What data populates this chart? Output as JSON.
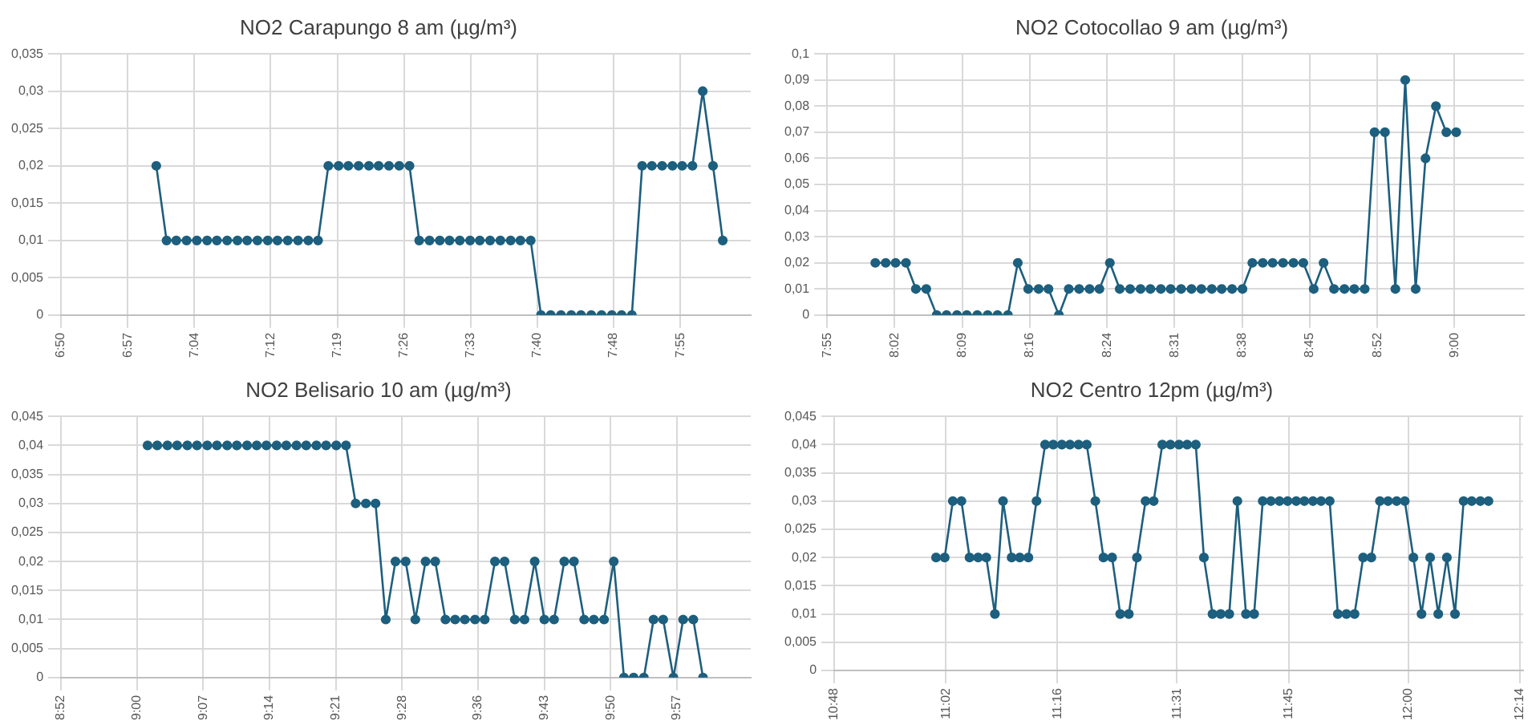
{
  "chart_data": [
    {
      "type": "line",
      "title": "NO2 Carapungo 8 am (µg/m³)",
      "marker": "circle",
      "grid": true,
      "xlim": [
        6.8333,
        8.04
      ],
      "xticks": [
        {
          "value": 6.8333,
          "label": "6:50"
        },
        {
          "value": 6.95,
          "label": "6:57"
        },
        {
          "value": 7.0667,
          "label": "7:04"
        },
        {
          "value": 7.2,
          "label": "7:12"
        },
        {
          "value": 7.3167,
          "label": "7:19"
        },
        {
          "value": 7.4333,
          "label": "7:26"
        },
        {
          "value": 7.55,
          "label": "7:33"
        },
        {
          "value": 7.6667,
          "label": "7:40"
        },
        {
          "value": 7.8,
          "label": "7:48"
        },
        {
          "value": 7.9167,
          "label": "7:55"
        }
      ],
      "ylim": [
        0,
        0.035
      ],
      "yticks": [
        {
          "value": 0,
          "label": "0"
        },
        {
          "value": 0.005,
          "label": "0,005"
        },
        {
          "value": 0.01,
          "label": "0,01"
        },
        {
          "value": 0.015,
          "label": "0,015"
        },
        {
          "value": 0.02,
          "label": "0,02"
        },
        {
          "value": 0.025,
          "label": "0,025"
        },
        {
          "value": 0.03,
          "label": "0,03"
        },
        {
          "value": 0.035,
          "label": "0,035"
        }
      ],
      "series": [
        {
          "color": "#1d5f7e",
          "x": [
            7.0,
            7.018,
            7.035,
            7.053,
            7.071,
            7.089,
            7.106,
            7.124,
            7.142,
            7.159,
            7.177,
            7.195,
            7.212,
            7.23,
            7.248,
            7.266,
            7.283,
            7.301,
            7.319,
            7.336,
            7.354,
            7.372,
            7.389,
            7.407,
            7.425,
            7.443,
            7.46,
            7.478,
            7.496,
            7.513,
            7.531,
            7.549,
            7.566,
            7.584,
            7.602,
            7.62,
            7.637,
            7.655,
            7.673,
            7.69,
            7.708,
            7.726,
            7.743,
            7.761,
            7.779,
            7.797,
            7.814,
            7.832,
            7.85,
            7.867,
            7.885,
            7.903,
            7.92,
            7.938,
            7.956,
            7.974,
            7.991
          ],
          "values": [
            0.02,
            0.01,
            0.01,
            0.01,
            0.01,
            0.01,
            0.01,
            0.01,
            0.01,
            0.01,
            0.01,
            0.01,
            0.01,
            0.01,
            0.01,
            0.01,
            0.01,
            0.02,
            0.02,
            0.02,
            0.02,
            0.02,
            0.02,
            0.02,
            0.02,
            0.02,
            0.01,
            0.01,
            0.01,
            0.01,
            0.01,
            0.01,
            0.01,
            0.01,
            0.01,
            0.01,
            0.01,
            0.01,
            0,
            0,
            0,
            0,
            0,
            0,
            0,
            0,
            0,
            0,
            0.02,
            0.02,
            0.02,
            0.02,
            0.02,
            0.02,
            0.03,
            0.02,
            0.01
          ]
        }
      ]
    },
    {
      "type": "line",
      "title": "NO2 Cotocollao 9 am (µg/m³)",
      "marker": "circle",
      "grid": true,
      "xlim": [
        7.9167,
        9.12
      ],
      "xticks": [
        {
          "value": 7.9167,
          "label": "7:55"
        },
        {
          "value": 8.0333,
          "label": "8:02"
        },
        {
          "value": 8.15,
          "label": "8:09"
        },
        {
          "value": 8.2667,
          "label": "8:16"
        },
        {
          "value": 8.4,
          "label": "8:24"
        },
        {
          "value": 8.5167,
          "label": "8:31"
        },
        {
          "value": 8.6333,
          "label": "8:38"
        },
        {
          "value": 8.75,
          "label": "8:45"
        },
        {
          "value": 8.8667,
          "label": "8:52"
        },
        {
          "value": 9.0,
          "label": "9:00"
        }
      ],
      "ylim": [
        0,
        0.1
      ],
      "yticks": [
        {
          "value": 0,
          "label": "0"
        },
        {
          "value": 0.01,
          "label": "0,01"
        },
        {
          "value": 0.02,
          "label": "0,02"
        },
        {
          "value": 0.03,
          "label": "0,03"
        },
        {
          "value": 0.04,
          "label": "0,04"
        },
        {
          "value": 0.05,
          "label": "0,05"
        },
        {
          "value": 0.06,
          "label": "0,06"
        },
        {
          "value": 0.07,
          "label": "0,07"
        },
        {
          "value": 0.08,
          "label": "0,08"
        },
        {
          "value": 0.09,
          "label": "0,09"
        },
        {
          "value": 0.1,
          "label": "0,1"
        }
      ],
      "series": [
        {
          "color": "#1d5f7e",
          "x": [
            8.0,
            8.018,
            8.035,
            8.053,
            8.07,
            8.088,
            8.106,
            8.123,
            8.141,
            8.158,
            8.176,
            8.194,
            8.211,
            8.229,
            8.246,
            8.264,
            8.282,
            8.299,
            8.317,
            8.334,
            8.352,
            8.37,
            8.387,
            8.405,
            8.422,
            8.44,
            8.458,
            8.475,
            8.493,
            8.51,
            8.528,
            8.546,
            8.563,
            8.581,
            8.598,
            8.616,
            8.634,
            8.651,
            8.669,
            8.686,
            8.704,
            8.722,
            8.739,
            8.757,
            8.774,
            8.792,
            8.81,
            8.827,
            8.845,
            8.862,
            8.88,
            8.898,
            8.915,
            8.933,
            8.95,
            8.968,
            8.986,
            9.003
          ],
          "values": [
            0.02,
            0.02,
            0.02,
            0.02,
            0.01,
            0.01,
            0,
            0,
            0,
            0,
            0,
            0,
            0,
            0,
            0.02,
            0.01,
            0.01,
            0.01,
            0,
            0.01,
            0.01,
            0.01,
            0.01,
            0.02,
            0.01,
            0.01,
            0.01,
            0.01,
            0.01,
            0.01,
            0.01,
            0.01,
            0.01,
            0.01,
            0.01,
            0.01,
            0.01,
            0.02,
            0.02,
            0.02,
            0.02,
            0.02,
            0.02,
            0.01,
            0.02,
            0.01,
            0.01,
            0.01,
            0.01,
            0.07,
            0.07,
            0.01,
            0.09,
            0.01,
            0.06,
            0.08,
            0.07,
            0.07
          ]
        }
      ]
    },
    {
      "type": "line",
      "title": "NO2 Belisario 10 am (µg/m³)",
      "marker": "circle",
      "grid": true,
      "xlim": [
        8.8667,
        10.08
      ],
      "xticks": [
        {
          "value": 8.8667,
          "label": "8:52"
        },
        {
          "value": 9.0,
          "label": "9:00"
        },
        {
          "value": 9.1167,
          "label": "9:07"
        },
        {
          "value": 9.2333,
          "label": "9:14"
        },
        {
          "value": 9.35,
          "label": "9:21"
        },
        {
          "value": 9.4667,
          "label": "9:28"
        },
        {
          "value": 9.6,
          "label": "9:36"
        },
        {
          "value": 9.7167,
          "label": "9:43"
        },
        {
          "value": 9.8333,
          "label": "9:50"
        },
        {
          "value": 9.95,
          "label": "9:57"
        }
      ],
      "ylim": [
        0,
        0.045
      ],
      "yticks": [
        {
          "value": 0,
          "label": "0"
        },
        {
          "value": 0.005,
          "label": "0,005"
        },
        {
          "value": 0.01,
          "label": "0,01"
        },
        {
          "value": 0.015,
          "label": "0,015"
        },
        {
          "value": 0.02,
          "label": "0,02"
        },
        {
          "value": 0.025,
          "label": "0,025"
        },
        {
          "value": 0.03,
          "label": "0,03"
        },
        {
          "value": 0.035,
          "label": "0,035"
        },
        {
          "value": 0.04,
          "label": "0,04"
        },
        {
          "value": 0.045,
          "label": "0,045"
        }
      ],
      "series": [
        {
          "color": "#1d5f7e",
          "x": [
            9.019,
            9.036,
            9.054,
            9.071,
            9.089,
            9.106,
            9.124,
            9.141,
            9.159,
            9.176,
            9.194,
            9.211,
            9.228,
            9.246,
            9.263,
            9.281,
            9.298,
            9.316,
            9.333,
            9.351,
            9.368,
            9.385,
            9.403,
            9.42,
            9.438,
            9.455,
            9.473,
            9.49,
            9.508,
            9.525,
            9.543,
            9.56,
            9.577,
            9.595,
            9.612,
            9.63,
            9.647,
            9.665,
            9.682,
            9.7,
            9.717,
            9.734,
            9.752,
            9.769,
            9.787,
            9.804,
            9.822,
            9.839,
            9.857,
            9.874,
            9.892,
            9.909,
            9.926,
            9.944,
            9.961,
            9.979,
            9.996
          ],
          "values": [
            0.04,
            0.04,
            0.04,
            0.04,
            0.04,
            0.04,
            0.04,
            0.04,
            0.04,
            0.04,
            0.04,
            0.04,
            0.04,
            0.04,
            0.04,
            0.04,
            0.04,
            0.04,
            0.04,
            0.04,
            0.04,
            0.03,
            0.03,
            0.03,
            0.01,
            0.02,
            0.02,
            0.01,
            0.02,
            0.02,
            0.01,
            0.01,
            0.01,
            0.01,
            0.01,
            0.02,
            0.02,
            0.01,
            0.01,
            0.02,
            0.01,
            0.01,
            0.02,
            0.02,
            0.01,
            0.01,
            0.01,
            0.02,
            0,
            0,
            0,
            0.01,
            0.01,
            0,
            0.01,
            0.01,
            0
          ]
        }
      ]
    },
    {
      "type": "line",
      "title": "NO2 Centro 12pm (µg/m³)",
      "marker": "circle",
      "grid": true,
      "xlim": [
        10.8,
        12.24
      ],
      "xticks": [
        {
          "value": 10.8,
          "label": "10:48"
        },
        {
          "value": 11.0333,
          "label": "11:02"
        },
        {
          "value": 11.2667,
          "label": "11:16"
        },
        {
          "value": 11.5167,
          "label": "11:31"
        },
        {
          "value": 11.75,
          "label": "11:45"
        },
        {
          "value": 12.0,
          "label": "12:00"
        },
        {
          "value": 12.2333,
          "label": "12:14"
        }
      ],
      "ylim": [
        0,
        0.045
      ],
      "yticks": [
        {
          "value": 0,
          "label": "0"
        },
        {
          "value": 0.005,
          "label": "0,005"
        },
        {
          "value": 0.01,
          "label": "0,01"
        },
        {
          "value": 0.015,
          "label": "0,015"
        },
        {
          "value": 0.02,
          "label": "0,02"
        },
        {
          "value": 0.025,
          "label": "0,025"
        },
        {
          "value": 0.03,
          "label": "0,03"
        },
        {
          "value": 0.035,
          "label": "0,035"
        },
        {
          "value": 0.04,
          "label": "0,04"
        },
        {
          "value": 0.045,
          "label": "0,045"
        }
      ],
      "series": [
        {
          "color": "#1d5f7e",
          "x": [
            11.013,
            11.031,
            11.048,
            11.066,
            11.083,
            11.101,
            11.118,
            11.136,
            11.153,
            11.171,
            11.188,
            11.206,
            11.223,
            11.241,
            11.258,
            11.276,
            11.293,
            11.311,
            11.328,
            11.346,
            11.363,
            11.381,
            11.398,
            11.416,
            11.433,
            11.451,
            11.468,
            11.486,
            11.503,
            11.521,
            11.538,
            11.556,
            11.573,
            11.591,
            11.608,
            11.626,
            11.643,
            11.661,
            11.678,
            11.696,
            11.713,
            11.731,
            11.748,
            11.766,
            11.783,
            11.801,
            11.818,
            11.836,
            11.853,
            11.871,
            11.888,
            11.906,
            11.923,
            11.941,
            11.958,
            11.976,
            11.993,
            12.011,
            12.028,
            12.046,
            12.063,
            12.081,
            12.098,
            12.116,
            12.133,
            12.151,
            12.168
          ],
          "values": [
            0.02,
            0.02,
            0.03,
            0.03,
            0.02,
            0.02,
            0.02,
            0.01,
            0.03,
            0.02,
            0.02,
            0.02,
            0.03,
            0.04,
            0.04,
            0.04,
            0.04,
            0.04,
            0.04,
            0.03,
            0.02,
            0.02,
            0.01,
            0.01,
            0.02,
            0.03,
            0.03,
            0.04,
            0.04,
            0.04,
            0.04,
            0.04,
            0.02,
            0.01,
            0.01,
            0.01,
            0.03,
            0.01,
            0.01,
            0.03,
            0.03,
            0.03,
            0.03,
            0.03,
            0.03,
            0.03,
            0.03,
            0.03,
            0.01,
            0.01,
            0.01,
            0.02,
            0.02,
            0.03,
            0.03,
            0.03,
            0.03,
            0.02,
            0.01,
            0.02,
            0.01,
            0.02,
            0.01,
            0.03,
            0.03,
            0.03,
            0.03
          ]
        }
      ]
    }
  ]
}
